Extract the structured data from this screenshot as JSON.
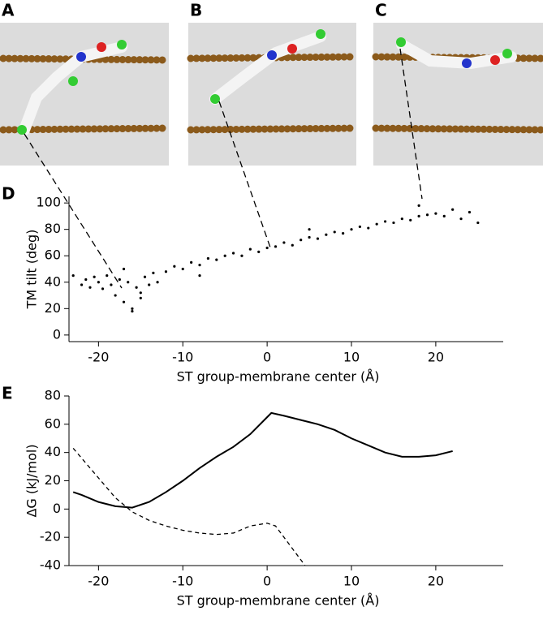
{
  "panels": [
    "A",
    "B",
    "C"
  ],
  "chart_data": [
    {
      "type": "scatter",
      "panel_label": "D",
      "xlabel": "ST group-membrane center (Å)",
      "ylabel": "TM tilt (deg)",
      "color": "#000000",
      "x": [
        -22,
        -21.5,
        -21,
        -20.5,
        -20,
        -19.5,
        -19,
        -18.5,
        -18,
        -17.5,
        -17,
        -16.5,
        -16,
        -15.5,
        -15,
        -14.5,
        -14,
        -13.5,
        -13,
        -12,
        -11,
        -10,
        -9,
        -8,
        -7,
        -6,
        -5,
        -4,
        -3,
        -2,
        -1,
        0,
        1,
        2,
        3,
        4,
        5,
        6,
        7,
        8,
        9,
        10,
        11,
        12,
        13,
        14,
        15,
        16,
        17,
        18,
        19,
        20,
        21,
        22,
        23,
        24,
        25,
        -23,
        -17,
        -16,
        -15,
        -8,
        5,
        18
      ],
      "y": [
        38,
        42,
        36,
        44,
        40,
        35,
        45,
        38,
        30,
        42,
        25,
        40,
        20,
        36,
        32,
        44,
        38,
        47,
        40,
        48,
        52,
        50,
        55,
        53,
        58,
        57,
        60,
        62,
        60,
        65,
        63,
        66,
        67,
        70,
        68,
        72,
        74,
        73,
        76,
        78,
        77,
        80,
        82,
        81,
        84,
        86,
        85,
        88,
        87,
        90,
        91,
        92,
        90,
        95,
        88,
        93,
        85,
        45,
        50,
        18,
        28,
        45,
        80,
        98
      ],
      "xlim": [
        -23.5,
        28
      ],
      "ylim": [
        -5,
        105
      ],
      "xticks": [
        -20,
        -10,
        0,
        10,
        20
      ],
      "yticks": [
        0,
        20,
        40,
        60,
        80,
        100
      ]
    },
    {
      "type": "line",
      "panel_label": "E",
      "xlabel": "ST group-membrane center (Å)",
      "ylabel": "ΔG (kJ/mol)",
      "series": [
        {
          "color": "#000000",
          "linestyle": "solid",
          "x": [
            -23,
            -22,
            -20,
            -18,
            -16,
            -14,
            -12,
            -10,
            -8,
            -6,
            -4,
            -2,
            0,
            0.5,
            2,
            4,
            6,
            8,
            10,
            12,
            14,
            16,
            18,
            20,
            22
          ],
          "values": [
            12,
            10,
            5,
            2,
            1,
            5,
            12,
            20,
            29,
            37,
            44,
            53,
            65,
            68,
            66,
            63,
            60,
            56,
            50,
            45,
            40,
            37,
            37,
            38,
            41
          ]
        },
        {
          "color": "#000000",
          "linestyle": "dashed",
          "x": [
            -23,
            -20,
            -18,
            -16,
            -14,
            -12,
            -10,
            -8,
            -6,
            -4,
            -2,
            0,
            1,
            2,
            3,
            4,
            4.5
          ],
          "values": [
            43,
            22,
            8,
            -2,
            -8,
            -12,
            -15,
            -17,
            -18,
            -17,
            -12,
            -10,
            -12,
            -20,
            -28,
            -36,
            -40
          ]
        }
      ],
      "xlim": [
        -23.5,
        28
      ],
      "ylim": [
        -40,
        80
      ],
      "xticks": [
        -20,
        -10,
        0,
        10,
        20
      ],
      "yticks": [
        -40,
        -20,
        0,
        20,
        40,
        60,
        80
      ]
    }
  ]
}
